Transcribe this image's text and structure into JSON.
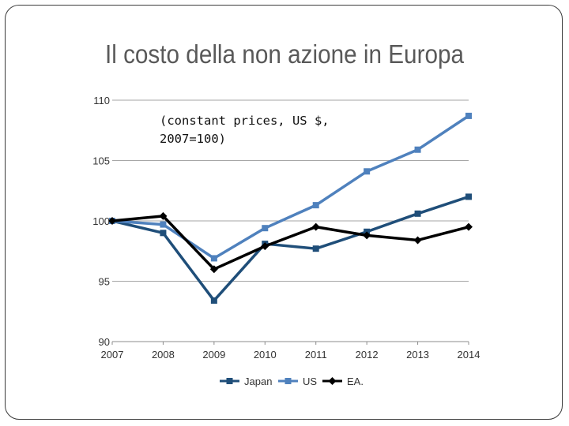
{
  "slide": {
    "title": "Il costo della non azione in Europa"
  },
  "chart_data": {
    "type": "line",
    "title": "",
    "annotation_lines": [
      "(constant prices, US $,",
      "2007=100)"
    ],
    "x": [
      2007,
      2008,
      2009,
      2010,
      2011,
      2012,
      2013,
      2014
    ],
    "ylim": [
      90,
      110
    ],
    "yticks": [
      90,
      95,
      100,
      105,
      110
    ],
    "grid": true,
    "legend_position": "bottom",
    "series": [
      {
        "name": "Japan",
        "color": "#1f4e79",
        "marker": "square",
        "values": [
          100.0,
          99.0,
          93.4,
          98.1,
          97.7,
          99.1,
          100.6,
          102.0
        ]
      },
      {
        "name": "US",
        "color": "#4f81bd",
        "marker": "square",
        "values": [
          100.0,
          99.7,
          96.9,
          99.4,
          101.3,
          104.1,
          105.9,
          108.7
        ]
      },
      {
        "name": "EA.",
        "color": "#000000",
        "marker": "diamond",
        "values": [
          100.0,
          100.4,
          96.0,
          97.9,
          99.5,
          98.8,
          98.4,
          99.5
        ]
      }
    ]
  }
}
